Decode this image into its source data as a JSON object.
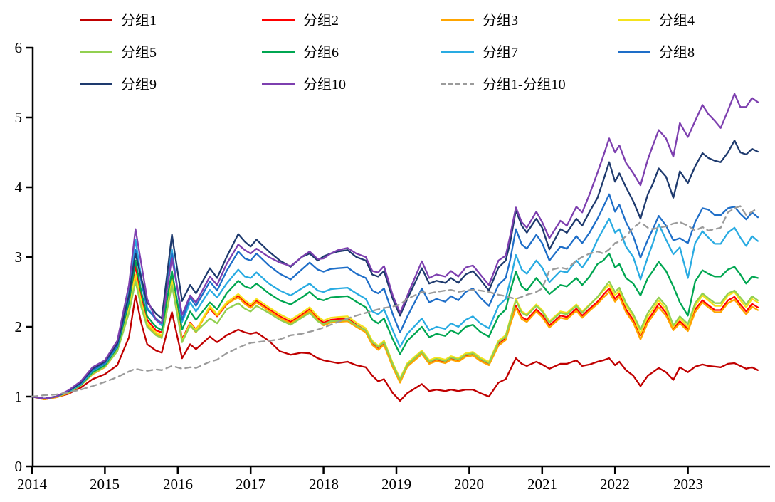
{
  "chart": {
    "background": "#FFFFFF",
    "axis_color": "#000000",
    "text_color": "#000000"
  },
  "axes": {
    "y": {
      "ticks": [
        "0",
        "1",
        "2",
        "3",
        "4",
        "5",
        "6"
      ],
      "min": 0,
      "max": 6
    },
    "x": {
      "ticks": [
        "2014",
        "2015",
        "2016",
        "2017",
        "2018",
        "2019",
        "2020",
        "2021",
        "2022",
        "2023"
      ],
      "min": 2014,
      "max": 2024.13
    }
  },
  "chart_data": {
    "type": "line",
    "title": "",
    "xlabel": "",
    "ylabel": "",
    "ylim": [
      0,
      6
    ],
    "xlim": [
      2014,
      2024.13
    ],
    "grid": false,
    "legend_position": "top",
    "x": [
      2014.0,
      2014.17,
      2014.33,
      2014.5,
      2014.67,
      2014.83,
      2015.0,
      2015.17,
      2015.33,
      2015.42,
      2015.5,
      2015.58,
      2015.7,
      2015.78,
      2015.92,
      2016.06,
      2016.17,
      2016.25,
      2016.44,
      2016.54,
      2016.67,
      2016.83,
      2016.92,
      2017.0,
      2017.08,
      2017.25,
      2017.4,
      2017.55,
      2017.7,
      2017.81,
      2017.92,
      2018.0,
      2018.1,
      2018.2,
      2018.33,
      2018.45,
      2018.58,
      2018.67,
      2018.75,
      2018.83,
      2018.95,
      2019.05,
      2019.15,
      2019.35,
      2019.45,
      2019.55,
      2019.67,
      2019.75,
      2019.85,
      2019.95,
      2020.05,
      2020.15,
      2020.27,
      2020.4,
      2020.5,
      2020.56,
      2020.64,
      2020.72,
      2020.79,
      2020.92,
      2021.0,
      2021.1,
      2021.25,
      2021.34,
      2021.47,
      2021.55,
      2021.65,
      2021.76,
      2021.84,
      2021.92,
      2022.0,
      2022.06,
      2022.15,
      2022.25,
      2022.35,
      2022.45,
      2022.52,
      2022.6,
      2022.7,
      2022.8,
      2022.89,
      2023.0,
      2023.1,
      2023.2,
      2023.28,
      2023.37,
      2023.45,
      2023.55,
      2023.64,
      2023.72,
      2023.8,
      2023.88,
      2023.96
    ],
    "series": [
      {
        "name": "分组1",
        "id": "group1",
        "color": "#C00000",
        "dashed": false,
        "values": [
          1.0,
          0.96,
          0.99,
          1.04,
          1.13,
          1.25,
          1.32,
          1.45,
          1.85,
          2.45,
          2.05,
          1.75,
          1.66,
          1.63,
          2.21,
          1.55,
          1.75,
          1.68,
          1.86,
          1.78,
          1.88,
          1.96,
          1.92,
          1.9,
          1.92,
          1.8,
          1.65,
          1.6,
          1.63,
          1.62,
          1.55,
          1.52,
          1.5,
          1.48,
          1.5,
          1.45,
          1.42,
          1.3,
          1.22,
          1.25,
          1.05,
          0.94,
          1.05,
          1.18,
          1.08,
          1.1,
          1.08,
          1.1,
          1.08,
          1.1,
          1.1,
          1.05,
          1.0,
          1.2,
          1.25,
          1.38,
          1.55,
          1.47,
          1.44,
          1.5,
          1.46,
          1.4,
          1.47,
          1.47,
          1.52,
          1.44,
          1.46,
          1.5,
          1.52,
          1.55,
          1.45,
          1.5,
          1.38,
          1.3,
          1.15,
          1.3,
          1.35,
          1.41,
          1.35,
          1.24,
          1.42,
          1.35,
          1.43,
          1.46,
          1.44,
          1.43,
          1.42,
          1.47,
          1.48,
          1.44,
          1.4,
          1.42,
          1.38
        ]
      },
      {
        "name": "分组2",
        "id": "group2",
        "color": "#FF0000",
        "dashed": false,
        "values": [
          1.0,
          0.97,
          1.0,
          1.06,
          1.17,
          1.34,
          1.44,
          1.68,
          2.35,
          2.86,
          2.45,
          2.1,
          1.95,
          1.92,
          2.7,
          1.82,
          2.06,
          1.96,
          2.26,
          2.15,
          2.32,
          2.44,
          2.35,
          2.29,
          2.37,
          2.25,
          2.15,
          2.07,
          2.17,
          2.25,
          2.12,
          2.06,
          2.1,
          2.11,
          2.12,
          2.03,
          1.95,
          1.77,
          1.7,
          1.77,
          1.45,
          1.22,
          1.45,
          1.63,
          1.49,
          1.53,
          1.5,
          1.55,
          1.52,
          1.59,
          1.61,
          1.53,
          1.47,
          1.76,
          1.84,
          2.05,
          2.3,
          2.14,
          2.1,
          2.25,
          2.17,
          2.02,
          2.16,
          2.14,
          2.26,
          2.16,
          2.26,
          2.36,
          2.46,
          2.55,
          2.4,
          2.47,
          2.25,
          2.1,
          1.88,
          2.1,
          2.2,
          2.33,
          2.2,
          1.98,
          2.08,
          1.97,
          2.25,
          2.38,
          2.31,
          2.24,
          2.24,
          2.38,
          2.43,
          2.32,
          2.22,
          2.33,
          2.28
        ]
      },
      {
        "name": "分组3",
        "id": "group3",
        "color": "#FFA500",
        "dashed": false,
        "values": [
          1.0,
          0.96,
          0.99,
          1.05,
          1.16,
          1.32,
          1.42,
          1.65,
          2.25,
          2.7,
          2.32,
          2.02,
          1.9,
          1.86,
          2.62,
          1.79,
          2.02,
          1.92,
          2.28,
          2.16,
          2.33,
          2.42,
          2.33,
          2.27,
          2.35,
          2.23,
          2.13,
          2.05,
          2.15,
          2.23,
          2.1,
          2.02,
          2.06,
          2.07,
          2.08,
          2.0,
          1.92,
          1.74,
          1.67,
          1.74,
          1.42,
          1.2,
          1.43,
          1.61,
          1.47,
          1.51,
          1.48,
          1.53,
          1.5,
          1.57,
          1.59,
          1.51,
          1.45,
          1.73,
          1.81,
          2.02,
          2.27,
          2.11,
          2.07,
          2.22,
          2.14,
          1.99,
          2.13,
          2.11,
          2.23,
          2.13,
          2.23,
          2.33,
          2.42,
          2.5,
          2.36,
          2.43,
          2.21,
          2.06,
          1.82,
          2.06,
          2.16,
          2.28,
          2.16,
          1.95,
          2.05,
          1.94,
          2.21,
          2.35,
          2.28,
          2.21,
          2.21,
          2.34,
          2.39,
          2.28,
          2.18,
          2.29,
          2.24
        ]
      },
      {
        "name": "分组4",
        "id": "group4",
        "color": "#F5E31D",
        "dashed": false,
        "values": [
          1.0,
          0.97,
          1.0,
          1.06,
          1.16,
          1.33,
          1.43,
          1.66,
          2.28,
          2.75,
          2.35,
          2.05,
          1.92,
          1.88,
          2.67,
          1.8,
          2.05,
          1.95,
          2.3,
          2.18,
          2.35,
          2.47,
          2.38,
          2.32,
          2.4,
          2.28,
          2.18,
          2.1,
          2.2,
          2.28,
          2.15,
          2.09,
          2.13,
          2.14,
          2.15,
          2.06,
          1.98,
          1.8,
          1.73,
          1.8,
          1.48,
          1.26,
          1.48,
          1.66,
          1.52,
          1.56,
          1.53,
          1.58,
          1.55,
          1.62,
          1.64,
          1.56,
          1.5,
          1.8,
          1.88,
          2.1,
          2.4,
          2.22,
          2.18,
          2.32,
          2.24,
          2.08,
          2.22,
          2.2,
          2.32,
          2.22,
          2.32,
          2.42,
          2.52,
          2.6,
          2.45,
          2.52,
          2.3,
          2.15,
          1.9,
          2.15,
          2.25,
          2.38,
          2.25,
          2.0,
          2.12,
          2.0,
          2.3,
          2.45,
          2.38,
          2.3,
          2.3,
          2.45,
          2.5,
          2.38,
          2.28,
          2.4,
          2.35
        ]
      },
      {
        "name": "分组5",
        "id": "group5",
        "color": "#92D050",
        "dashed": false,
        "values": [
          1.0,
          0.97,
          1.0,
          1.06,
          1.16,
          1.33,
          1.43,
          1.65,
          2.2,
          2.65,
          2.28,
          2.0,
          1.88,
          1.84,
          2.6,
          1.78,
          2.02,
          1.93,
          2.12,
          2.05,
          2.25,
          2.34,
          2.26,
          2.22,
          2.3,
          2.2,
          2.1,
          2.03,
          2.13,
          2.2,
          2.08,
          2.04,
          2.08,
          2.09,
          2.1,
          2.02,
          1.95,
          1.78,
          1.71,
          1.78,
          1.46,
          1.24,
          1.46,
          1.64,
          1.5,
          1.54,
          1.51,
          1.56,
          1.53,
          1.6,
          1.62,
          1.54,
          1.48,
          1.78,
          1.86,
          2.08,
          2.38,
          2.2,
          2.16,
          2.3,
          2.22,
          2.06,
          2.2,
          2.18,
          2.3,
          2.2,
          2.31,
          2.43,
          2.54,
          2.65,
          2.5,
          2.56,
          2.34,
          2.18,
          1.96,
          2.2,
          2.3,
          2.42,
          2.3,
          2.02,
          2.15,
          2.04,
          2.34,
          2.48,
          2.41,
          2.34,
          2.34,
          2.48,
          2.52,
          2.42,
          2.32,
          2.44,
          2.38
        ]
      },
      {
        "name": "分组6",
        "id": "group6",
        "color": "#00A651",
        "dashed": false,
        "values": [
          1.0,
          0.97,
          1.0,
          1.07,
          1.17,
          1.35,
          1.45,
          1.7,
          2.35,
          2.95,
          2.5,
          2.15,
          2.0,
          1.95,
          2.8,
          1.96,
          2.22,
          2.1,
          2.35,
          2.25,
          2.48,
          2.66,
          2.58,
          2.55,
          2.62,
          2.48,
          2.38,
          2.32,
          2.42,
          2.5,
          2.4,
          2.38,
          2.42,
          2.43,
          2.44,
          2.36,
          2.28,
          2.1,
          2.05,
          2.12,
          1.82,
          1.61,
          1.8,
          2.0,
          1.85,
          1.9,
          1.87,
          1.95,
          1.9,
          2.0,
          2.03,
          1.93,
          1.86,
          2.15,
          2.25,
          2.5,
          2.79,
          2.58,
          2.52,
          2.7,
          2.6,
          2.47,
          2.6,
          2.58,
          2.7,
          2.6,
          2.72,
          2.9,
          2.95,
          3.05,
          2.85,
          2.9,
          2.7,
          2.62,
          2.45,
          2.7,
          2.8,
          2.93,
          2.8,
          2.58,
          2.35,
          2.16,
          2.65,
          2.81,
          2.76,
          2.72,
          2.72,
          2.82,
          2.86,
          2.75,
          2.62,
          2.72,
          2.7
        ]
      },
      {
        "name": "分组7",
        "id": "group7",
        "color": "#29ABE2",
        "dashed": false,
        "values": [
          1.0,
          0.97,
          1.0,
          1.07,
          1.18,
          1.37,
          1.47,
          1.72,
          2.5,
          3.25,
          2.7,
          2.28,
          2.1,
          2.02,
          3.11,
          2.07,
          2.35,
          2.22,
          2.53,
          2.42,
          2.62,
          2.82,
          2.72,
          2.7,
          2.78,
          2.62,
          2.52,
          2.45,
          2.55,
          2.62,
          2.52,
          2.5,
          2.54,
          2.55,
          2.56,
          2.48,
          2.4,
          2.22,
          2.18,
          2.25,
          1.95,
          1.71,
          1.9,
          2.12,
          1.95,
          2.0,
          1.97,
          2.05,
          2.0,
          2.1,
          2.15,
          2.05,
          1.98,
          2.3,
          2.4,
          2.65,
          3.03,
          2.82,
          2.76,
          2.95,
          2.85,
          2.64,
          2.8,
          2.78,
          2.95,
          2.85,
          3.0,
          3.25,
          3.4,
          3.55,
          3.35,
          3.4,
          3.15,
          3.0,
          2.68,
          3.0,
          3.2,
          3.47,
          3.25,
          3.04,
          3.14,
          2.7,
          3.2,
          3.37,
          3.28,
          3.19,
          3.19,
          3.35,
          3.42,
          3.28,
          3.16,
          3.3,
          3.23
        ]
      },
      {
        "name": "分组8",
        "id": "group8",
        "color": "#1E6EC8",
        "dashed": false,
        "values": [
          1.0,
          0.97,
          1.0,
          1.08,
          1.19,
          1.38,
          1.48,
          1.73,
          2.42,
          3.1,
          2.65,
          2.25,
          2.12,
          2.05,
          3.05,
          2.1,
          2.42,
          2.3,
          2.65,
          2.52,
          2.8,
          3.08,
          2.98,
          2.95,
          3.05,
          2.88,
          2.76,
          2.68,
          2.82,
          2.92,
          2.82,
          2.79,
          2.83,
          2.84,
          2.85,
          2.76,
          2.7,
          2.52,
          2.48,
          2.55,
          2.18,
          1.92,
          2.15,
          2.55,
          2.35,
          2.4,
          2.36,
          2.44,
          2.38,
          2.5,
          2.55,
          2.42,
          2.3,
          2.6,
          2.7,
          2.95,
          3.4,
          3.18,
          3.12,
          3.32,
          3.2,
          2.95,
          3.15,
          3.12,
          3.3,
          3.2,
          3.35,
          3.55,
          3.72,
          3.9,
          3.65,
          3.75,
          3.5,
          3.3,
          2.99,
          3.25,
          3.4,
          3.59,
          3.45,
          3.24,
          3.27,
          3.2,
          3.5,
          3.7,
          3.68,
          3.6,
          3.6,
          3.7,
          3.72,
          3.62,
          3.54,
          3.64,
          3.57
        ]
      },
      {
        "name": "分组9",
        "id": "group9",
        "color": "#1E3A6E",
        "dashed": false,
        "values": [
          1.0,
          0.97,
          1.0,
          1.08,
          1.2,
          1.4,
          1.5,
          1.76,
          2.45,
          3.05,
          2.7,
          2.35,
          2.19,
          2.12,
          3.32,
          2.37,
          2.6,
          2.48,
          2.84,
          2.7,
          3.0,
          3.33,
          3.22,
          3.15,
          3.25,
          3.08,
          2.95,
          2.86,
          3.0,
          3.05,
          2.95,
          3.01,
          3.05,
          3.08,
          3.1,
          3.0,
          2.95,
          2.75,
          2.72,
          2.8,
          2.4,
          2.16,
          2.4,
          2.84,
          2.62,
          2.66,
          2.63,
          2.7,
          2.63,
          2.75,
          2.8,
          2.68,
          2.52,
          2.85,
          2.95,
          3.2,
          3.67,
          3.45,
          3.35,
          3.55,
          3.42,
          3.11,
          3.4,
          3.35,
          3.55,
          3.45,
          3.65,
          3.85,
          4.1,
          4.36,
          4.08,
          4.2,
          4.0,
          3.8,
          3.55,
          3.9,
          4.05,
          4.27,
          4.15,
          3.85,
          4.23,
          4.06,
          4.3,
          4.49,
          4.42,
          4.38,
          4.36,
          4.5,
          4.67,
          4.5,
          4.47,
          4.55,
          4.51
        ]
      },
      {
        "name": "分组10",
        "id": "group10",
        "color": "#7D3FAF",
        "dashed": false,
        "values": [
          1.0,
          0.97,
          1.0,
          1.09,
          1.22,
          1.42,
          1.52,
          1.8,
          2.6,
          3.4,
          2.9,
          2.4,
          2.1,
          2.05,
          2.99,
          2.17,
          2.45,
          2.35,
          2.72,
          2.6,
          2.9,
          3.18,
          3.1,
          3.05,
          3.12,
          3.0,
          2.92,
          2.87,
          3.0,
          3.08,
          2.97,
          2.98,
          3.05,
          3.1,
          3.13,
          3.05,
          3.0,
          2.8,
          2.78,
          2.87,
          2.45,
          2.2,
          2.45,
          2.94,
          2.7,
          2.75,
          2.72,
          2.8,
          2.72,
          2.85,
          2.88,
          2.75,
          2.6,
          2.95,
          3.02,
          3.3,
          3.71,
          3.5,
          3.42,
          3.65,
          3.5,
          3.27,
          3.52,
          3.45,
          3.72,
          3.64,
          3.9,
          4.21,
          4.45,
          4.7,
          4.5,
          4.6,
          4.35,
          4.2,
          4.03,
          4.4,
          4.6,
          4.82,
          4.7,
          4.44,
          4.92,
          4.72,
          4.95,
          5.18,
          5.05,
          4.95,
          4.85,
          5.1,
          5.34,
          5.15,
          5.15,
          5.28,
          5.22
        ]
      },
      {
        "name": "分组1-分组10",
        "id": "spread",
        "color": "#9B9B9B",
        "dashed": true,
        "values": [
          1.0,
          1.02,
          1.03,
          1.06,
          1.1,
          1.15,
          1.21,
          1.28,
          1.36,
          1.4,
          1.38,
          1.37,
          1.39,
          1.38,
          1.44,
          1.4,
          1.42,
          1.41,
          1.5,
          1.53,
          1.62,
          1.7,
          1.74,
          1.77,
          1.78,
          1.8,
          1.82,
          1.88,
          1.9,
          1.93,
          1.96,
          1.99,
          2.03,
          2.07,
          2.12,
          2.16,
          2.2,
          2.23,
          2.25,
          2.27,
          2.29,
          2.32,
          2.4,
          2.5,
          2.48,
          2.5,
          2.52,
          2.53,
          2.5,
          2.52,
          2.53,
          2.52,
          2.5,
          2.46,
          2.44,
          2.42,
          2.4,
          2.43,
          2.46,
          2.5,
          2.55,
          2.81,
          2.85,
          2.83,
          2.95,
          3.0,
          3.05,
          3.08,
          3.05,
          3.11,
          3.2,
          3.22,
          3.3,
          3.42,
          3.5,
          3.42,
          3.4,
          3.42,
          3.44,
          3.48,
          3.5,
          3.45,
          3.38,
          3.43,
          3.38,
          3.4,
          3.42,
          3.64,
          3.7,
          3.73,
          3.6,
          3.65,
          3.7
        ]
      }
    ]
  }
}
